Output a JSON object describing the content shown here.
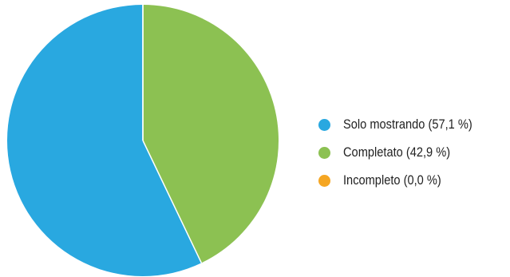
{
  "chart_data": {
    "type": "pie",
    "title": "",
    "start": "top",
    "direction": "counter-clockwise",
    "series": [
      {
        "name": "",
        "slices": [
          {
            "label": "Solo mostrando (57,1 %)",
            "category": "Solo mostrando",
            "value": 57.1,
            "color": "#29a8e0"
          },
          {
            "label": "Completato (42,9 %)",
            "category": "Completato",
            "value": 42.9,
            "color": "#8cc152"
          },
          {
            "label": "Incompleto (0,0 %)",
            "category": "Incompleto",
            "value": 0.0,
            "color": "#f5a623"
          }
        ]
      }
    ],
    "legend": {
      "position": "right",
      "items": [
        {
          "label": "Solo mostrando (57,1 %)",
          "color": "#29a8e0"
        },
        {
          "label": "Completato (42,9 %)",
          "color": "#8cc152"
        },
        {
          "label": "Incompleto (0,0 %)",
          "color": "#f5a623"
        }
      ]
    }
  }
}
